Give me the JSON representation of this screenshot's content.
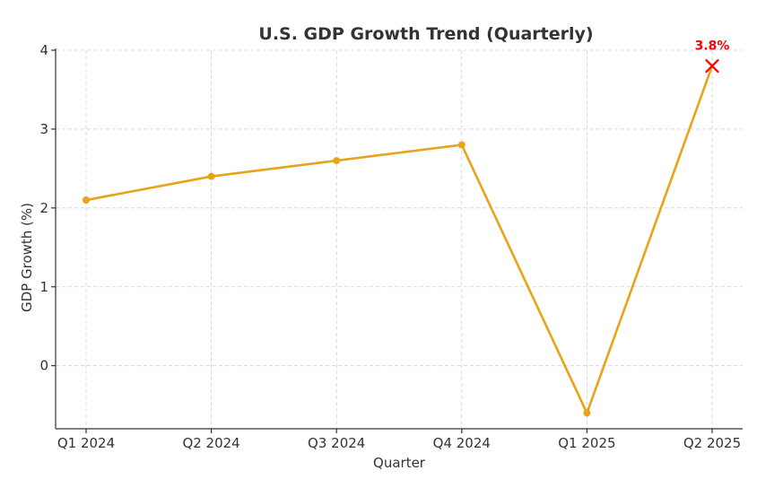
{
  "chart_data": {
    "type": "line",
    "title": "U.S. GDP Growth Trend (Quarterly)",
    "xlabel": "Quarter",
    "ylabel": "GDP Growth (%)",
    "categories": [
      "Q1 2024",
      "Q2 2024",
      "Q3 2024",
      "Q4 2024",
      "Q1 2025",
      "Q2 2025"
    ],
    "series": [
      {
        "name": "GDP Growth",
        "values": [
          2.1,
          2.4,
          2.6,
          2.8,
          -0.6,
          3.8
        ],
        "color": "#E8A317"
      }
    ],
    "ylim": [
      -0.8,
      4.0
    ],
    "yticks": [
      0,
      1,
      2,
      3,
      4
    ],
    "grid": true,
    "highlight": {
      "index": 5,
      "label": "3.8%",
      "marker": "x",
      "color": "#FF0000"
    }
  }
}
